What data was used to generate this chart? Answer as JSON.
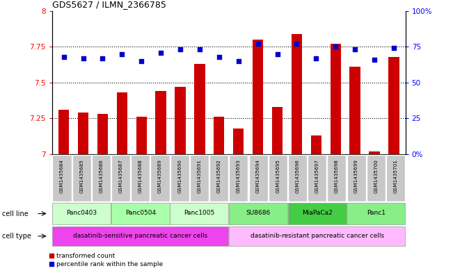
{
  "title": "GDS5627 / ILMN_2366785",
  "samples": [
    "GSM1435684",
    "GSM1435685",
    "GSM1435686",
    "GSM1435687",
    "GSM1435688",
    "GSM1435689",
    "GSM1435690",
    "GSM1435691",
    "GSM1435692",
    "GSM1435693",
    "GSM1435694",
    "GSM1435695",
    "GSM1435696",
    "GSM1435697",
    "GSM1435698",
    "GSM1435699",
    "GSM1435700",
    "GSM1435701"
  ],
  "bar_values": [
    7.31,
    7.29,
    7.28,
    7.43,
    7.26,
    7.44,
    7.47,
    7.63,
    7.26,
    7.18,
    7.8,
    7.33,
    7.84,
    7.13,
    7.77,
    7.61,
    7.02,
    7.68
  ],
  "percentile_values": [
    68,
    67,
    67,
    70,
    65,
    71,
    73,
    73,
    68,
    65,
    77,
    70,
    77,
    67,
    75,
    73,
    66,
    74
  ],
  "bar_color": "#cc0000",
  "percentile_color": "#0000cc",
  "ylim_left": [
    7.0,
    8.0
  ],
  "ylim_right": [
    0,
    100
  ],
  "yticks_left": [
    7.0,
    7.25,
    7.5,
    7.75,
    8.0
  ],
  "ytick_labels_left": [
    "7",
    "7.25",
    "7.5",
    "7.75",
    "8"
  ],
  "yticks_right": [
    0,
    25,
    50,
    75,
    100
  ],
  "ytick_labels_right": [
    "0%",
    "25",
    "50",
    "75",
    "100%"
  ],
  "hlines": [
    7.25,
    7.5,
    7.75
  ],
  "cell_line_groups": [
    {
      "label": "Panc0403",
      "start": 0,
      "end": 3,
      "color": "#ccffcc"
    },
    {
      "label": "Panc0504",
      "start": 3,
      "end": 6,
      "color": "#aaffaa"
    },
    {
      "label": "Panc1005",
      "start": 6,
      "end": 9,
      "color": "#ccffcc"
    },
    {
      "label": "SU8686",
      "start": 9,
      "end": 12,
      "color": "#88ee88"
    },
    {
      "label": "MiaPaCa2",
      "start": 12,
      "end": 15,
      "color": "#44cc44"
    },
    {
      "label": "Panc1",
      "start": 15,
      "end": 18,
      "color": "#88ee88"
    }
  ],
  "cell_type_groups": [
    {
      "label": "dasatinib-sensitive pancreatic cancer cells",
      "start": 0,
      "end": 9,
      "color": "#ee44ee"
    },
    {
      "label": "dasatinib-resistant pancreatic cancer cells",
      "start": 9,
      "end": 18,
      "color": "#ffbbff"
    }
  ],
  "sample_box_color": "#c8c8c8",
  "sample_box_edge_color": "#ffffff",
  "legend_bar_label": "transformed count",
  "legend_percentile_label": "percentile rank within the sample",
  "cell_line_row_label": "cell line",
  "cell_type_row_label": "cell type"
}
